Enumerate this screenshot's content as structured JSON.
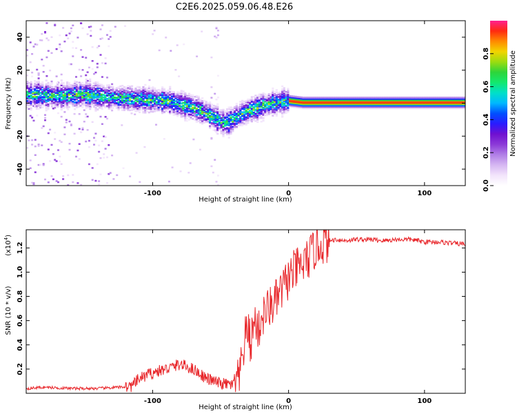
{
  "page_title": "C2E6.2025.059.06.48.E26",
  "colors": {
    "snr_line": "#e8262a",
    "colormap": [
      "#ffffff",
      "#f2e4fb",
      "#d6b7f2",
      "#b07ee6",
      "#8c3ad8",
      "#6f10d0",
      "#2a1bff",
      "#0050ff",
      "#00b8ff",
      "#00e0c8",
      "#12e86e",
      "#2ed53a",
      "#9bdc10",
      "#f2d400",
      "#ff8a00",
      "#ff2a10",
      "#ff2090"
    ]
  },
  "chart_data": [
    {
      "type": "heatmap",
      "id": "spectrogram",
      "xlabel": "Height of straight line (km)",
      "ylabel": "Frequency (Hz)",
      "xlim": [
        -193,
        130
      ],
      "ylim": [
        -50,
        50
      ],
      "x_ticks": [
        -100,
        0,
        100
      ],
      "x_tick_labels": [
        "-100",
        "0",
        "100"
      ],
      "y_ticks": [
        -40,
        -20,
        0,
        20,
        40
      ],
      "y_tick_labels": [
        "-40",
        "-20",
        "0",
        "20",
        "40"
      ],
      "ridge_frequency": {
        "x": [
          -193,
          -170,
          -150,
          -130,
          -110,
          -90,
          -75,
          -65,
          -55,
          -50,
          -45,
          -40,
          -30,
          -20,
          -10,
          0,
          10,
          20,
          40,
          60,
          80,
          100,
          130
        ],
        "y": [
          6,
          5,
          6,
          4,
          3,
          2,
          -1,
          -4,
          -8,
          -11,
          -11,
          -8,
          -4,
          -1,
          1,
          2,
          1,
          1,
          1,
          1,
          1,
          1,
          1
        ]
      },
      "colorbar": {
        "label": "Normalized spectral amplitude",
        "range": [
          0,
          1
        ],
        "ticks": [
          0.0,
          0.2,
          0.4,
          0.6,
          0.8
        ],
        "tick_labels": [
          "0.0",
          "0.2",
          "0.4",
          "0.6",
          "0.8"
        ]
      }
    },
    {
      "type": "line",
      "id": "snr",
      "xlabel": "Height of straight line (km)",
      "ylabel": "SNR (10 * v/v)",
      "scale_label": "(x10",
      "scale_exponent": "4",
      "xlim": [
        -193,
        130
      ],
      "ylim": [
        0,
        1.35
      ],
      "x_ticks": [
        -100,
        0,
        100
      ],
      "x_tick_labels": [
        "-100",
        "0",
        "100"
      ],
      "y_ticks": [
        0.2,
        0.4,
        0.6,
        0.8,
        1.0,
        1.2
      ],
      "y_tick_labels": [
        "0.2",
        "0.4",
        "0.6",
        "0.8",
        "1.0",
        "1.2"
      ],
      "series": [
        {
          "x": [
            -193,
            -180,
            -160,
            -140,
            -125,
            -115,
            -110,
            -100,
            -90,
            -80,
            -75,
            -70,
            -60,
            -50,
            -40,
            -36,
            -34,
            -32,
            -30,
            -28,
            -26,
            -24,
            -22,
            -20,
            -15,
            -10,
            -5,
            0,
            5,
            10,
            15,
            20,
            25,
            30,
            35,
            40,
            50,
            60,
            70,
            80,
            90,
            100,
            110,
            120,
            130
          ],
          "y": [
            0.04,
            0.05,
            0.04,
            0.04,
            0.05,
            0.06,
            0.12,
            0.17,
            0.2,
            0.24,
            0.22,
            0.2,
            0.12,
            0.08,
            0.07,
            0.12,
            0.3,
            0.45,
            0.55,
            0.4,
            0.55,
            0.6,
            0.5,
            0.62,
            0.7,
            0.75,
            0.85,
            0.95,
            1.02,
            1.05,
            1.12,
            1.2,
            1.24,
            1.26,
            1.27,
            1.26,
            1.27,
            1.27,
            1.26,
            1.27,
            1.27,
            1.25,
            1.25,
            1.24,
            1.23
          ]
        }
      ]
    }
  ]
}
